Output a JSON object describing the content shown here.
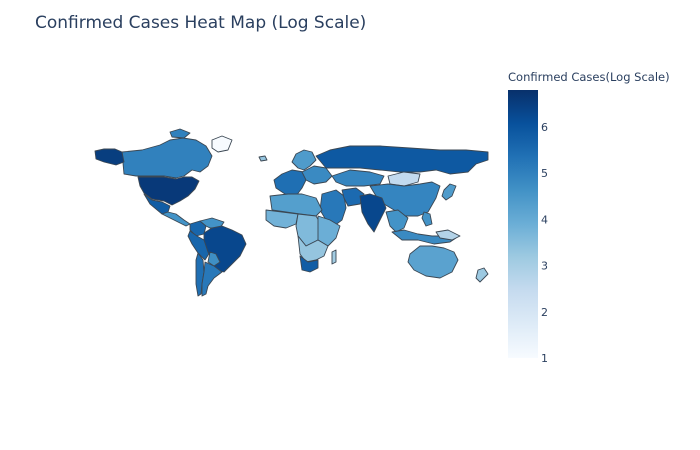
{
  "chart_data": {
    "type": "choropleth",
    "title": "Confirmed Cases Heat Map (Log Scale)",
    "colorbar": {
      "title": "Confirmed Cases(Log Scale)",
      "range": [
        1,
        6.8
      ],
      "ticks": [
        1,
        2,
        3,
        4,
        5,
        6
      ],
      "tick_labels": [
        "1",
        "2",
        "3",
        "4",
        "5",
        "6"
      ],
      "colorscale": [
        "#f7fbff",
        "#deebf7",
        "#c6dbef",
        "#9ecae1",
        "#6baed6",
        "#4292c6",
        "#2171b5",
        "#08519c",
        "#08306b"
      ]
    },
    "regions": [
      {
        "name": "Canada",
        "value": 5.0
      },
      {
        "name": "Alaska",
        "value": 6.5
      },
      {
        "name": "Greenland",
        "value": 1.0
      },
      {
        "name": "United States",
        "value": 6.6
      },
      {
        "name": "Mexico",
        "value": 5.8
      },
      {
        "name": "Central America",
        "value": 4.6
      },
      {
        "name": "Colombia",
        "value": 5.6
      },
      {
        "name": "Venezuela",
        "value": 4.6
      },
      {
        "name": "Peru",
        "value": 5.6
      },
      {
        "name": "Brazil",
        "value": 6.3
      },
      {
        "name": "Bolivia",
        "value": 4.7
      },
      {
        "name": "Chile",
        "value": 5.4
      },
      {
        "name": "Argentina",
        "value": 5.2
      },
      {
        "name": "Iceland",
        "value": 3.3
      },
      {
        "name": "Scandinavia",
        "value": 4.4
      },
      {
        "name": "Western Europe",
        "value": 5.4
      },
      {
        "name": "Eastern Europe",
        "value": 4.8
      },
      {
        "name": "Russia",
        "value": 5.9
      },
      {
        "name": "Kazakhstan",
        "value": 4.9
      },
      {
        "name": "Mongolia",
        "value": 2.5
      },
      {
        "name": "China",
        "value": 4.9
      },
      {
        "name": "Japan",
        "value": 4.4
      },
      {
        "name": "Middle East",
        "value": 5.2
      },
      {
        "name": "Iran",
        "value": 5.5
      },
      {
        "name": "India",
        "value": 6.3
      },
      {
        "name": "Southeast Asia",
        "value": 4.6
      },
      {
        "name": "Indonesia",
        "value": 4.8
      },
      {
        "name": "Philippines",
        "value": 4.6
      },
      {
        "name": "North Africa",
        "value": 4.3
      },
      {
        "name": "West Africa",
        "value": 3.8
      },
      {
        "name": "Central Africa",
        "value": 3.6
      },
      {
        "name": "East Africa",
        "value": 3.9
      },
      {
        "name": "Southern Africa",
        "value": 3.3
      },
      {
        "name": "South Africa",
        "value": 5.8
      },
      {
        "name": "Madagascar",
        "value": 3.1
      },
      {
        "name": "Australia",
        "value": 4.2
      },
      {
        "name": "Papua New Guinea",
        "value": 2.8
      },
      {
        "name": "New Zealand",
        "value": 3.2
      }
    ]
  }
}
